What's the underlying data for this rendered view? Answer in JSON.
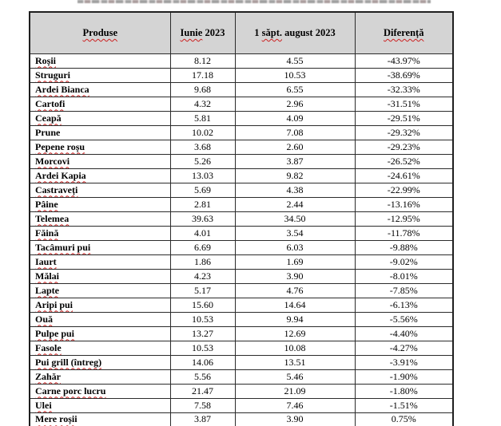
{
  "page": {
    "background_color": "#ffffff",
    "header_bg_color": "#d4d4d4",
    "border_color": "#1f1f1f",
    "squiggle_color": "#cc1f1f",
    "cutoff_title_note": "partially visible cut-off text line at top edge"
  },
  "table": {
    "headers": [
      {
        "pre": "",
        "misspelled": "Produse",
        "post": ""
      },
      {
        "pre": "",
        "misspelled": "Iunie",
        "post": " 2023"
      },
      {
        "pre": "1 ",
        "misspelled": "săpt.",
        "post": " august 2023"
      },
      {
        "pre": "",
        "misspelled": "Diferență",
        "post": ""
      }
    ],
    "rows": [
      {
        "name": "Roșii",
        "iunie": "8.12",
        "august": "4.55",
        "diferenta": "-43.97%",
        "misspelled": true
      },
      {
        "name": "Struguri",
        "iunie": "17.18",
        "august": "10.53",
        "diferenta": "-38.69%",
        "misspelled": true
      },
      {
        "name": "Ardei Bianca",
        "iunie": "9.68",
        "august": "6.55",
        "diferenta": "-32.33%",
        "misspelled": true
      },
      {
        "name": "Cartofi",
        "iunie": "4.32",
        "august": "2.96",
        "diferenta": "-31.51%",
        "misspelled": true
      },
      {
        "name": "Ceapă",
        "iunie": "5.81",
        "august": "4.09",
        "diferenta": "-29.51%",
        "misspelled": true
      },
      {
        "name": "Prune",
        "iunie": "10.02",
        "august": "7.08",
        "diferenta": "-29.32%",
        "misspelled": false
      },
      {
        "name": "Pepene roșu",
        "iunie": "3.68",
        "august": "2.60",
        "diferenta": "-29.23%",
        "misspelled": true
      },
      {
        "name": "Morcovi",
        "iunie": "5.26",
        "august": "3.87",
        "diferenta": "-26.52%",
        "misspelled": true
      },
      {
        "name": "Ardei Kapia",
        "iunie": "13.03",
        "august": "9.82",
        "diferenta": "-24.61%",
        "misspelled": true
      },
      {
        "name": "Castraveți",
        "iunie": "5.69",
        "august": "4.38",
        "diferenta": "-22.99%",
        "misspelled": true
      },
      {
        "name": "Pâine",
        "iunie": "2.81",
        "august": "2.44",
        "diferenta": "-13.16%",
        "misspelled": true
      },
      {
        "name": "Telemea",
        "iunie": "39.63",
        "august": "34.50",
        "diferenta": "-12.95%",
        "misspelled": true
      },
      {
        "name": "Făină",
        "iunie": "4.01",
        "august": "3.54",
        "diferenta": "-11.78%",
        "misspelled": true
      },
      {
        "name": "Tacâmuri pui",
        "iunie": "6.69",
        "august": "6.03",
        "diferenta": "-9.88%",
        "misspelled": true
      },
      {
        "name": "Iaurt",
        "iunie": "1.86",
        "august": "1.69",
        "diferenta": "-9.02%",
        "misspelled": true
      },
      {
        "name": "Mălai",
        "iunie": "4.23",
        "august": "3.90",
        "diferenta": "-8.01%",
        "misspelled": true
      },
      {
        "name": "Lapte",
        "iunie": "5.17",
        "august": "4.76",
        "diferenta": "-7.85%",
        "misspelled": true
      },
      {
        "name": "Aripi pui",
        "iunie": "15.60",
        "august": "14.64",
        "diferenta": "-6.13%",
        "misspelled": true
      },
      {
        "name": "Ouă",
        "iunie": "10.53",
        "august": "9.94",
        "diferenta": "-5.56%",
        "misspelled": true
      },
      {
        "name": "Pulpe pui",
        "iunie": "13.27",
        "august": "12.69",
        "diferenta": "-4.40%",
        "misspelled": true
      },
      {
        "name": "Fasole",
        "iunie": "10.53",
        "august": "10.08",
        "diferenta": "-4.27%",
        "misspelled": true
      },
      {
        "name": "Pui grill (întreg)",
        "iunie": "14.06",
        "august": "13.51",
        "diferenta": "-3.91%",
        "misspelled": true
      },
      {
        "name": "Zahăr",
        "iunie": "5.56",
        "august": "5.46",
        "diferenta": "-1.90%",
        "misspelled": true
      },
      {
        "name": "Carne porc lucru",
        "iunie": "21.47",
        "august": "21.09",
        "diferenta": "-1.80%",
        "misspelled": true
      },
      {
        "name": "Ulei",
        "iunie": "7.58",
        "august": "7.46",
        "diferenta": "-1.51%",
        "misspelled": true
      },
      {
        "name": "Mere roșii",
        "iunie": "3.87",
        "august": "3.90",
        "diferenta": "0.75%",
        "misspelled": true
      }
    ]
  }
}
